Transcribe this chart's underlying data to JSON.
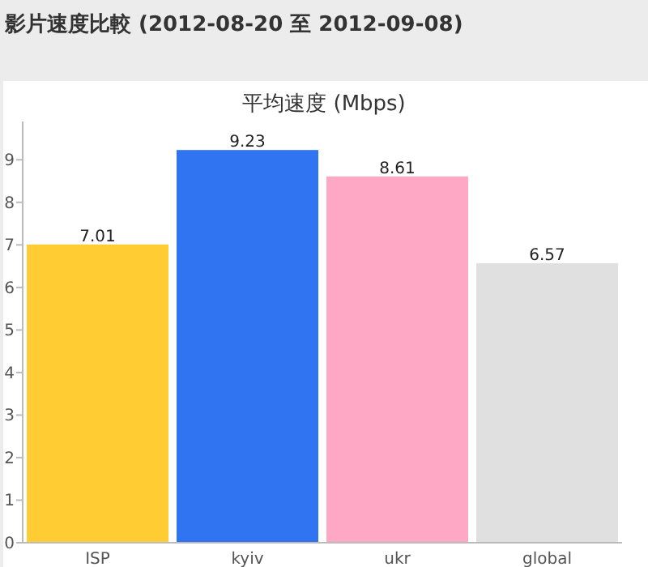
{
  "chart_data": {
    "type": "bar",
    "title": "影片速度比較 (2012-08-20 至 2012-09-08)",
    "subtitle": "平均速度 (Mbps)",
    "categories": [
      "ISP",
      "kyiv",
      "ukr",
      "global"
    ],
    "values": [
      7.01,
      9.23,
      8.61,
      6.57
    ],
    "colors": [
      "#ffcc33",
      "#3074f2",
      "#ffa8c5",
      "#e0e0e0"
    ],
    "ylim": [
      0,
      9.9
    ],
    "yticks": [
      0,
      1,
      2,
      3,
      4,
      5,
      6,
      7,
      8,
      9
    ],
    "data_labels": true
  }
}
